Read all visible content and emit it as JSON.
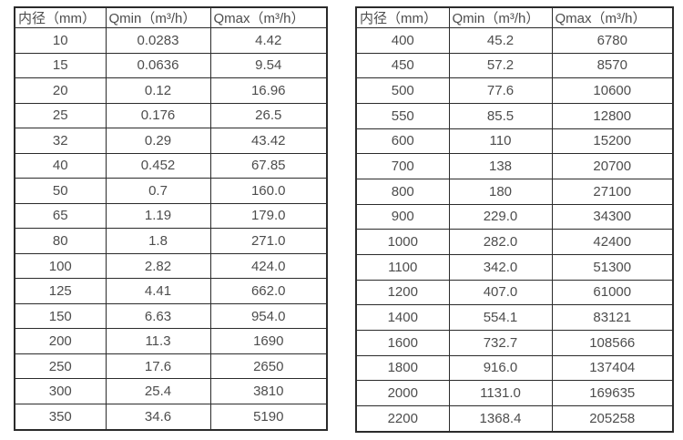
{
  "colors": {
    "background": "#ffffff",
    "border": "#2b2b2b",
    "text": "#4d4d4d"
  },
  "tables": [
    {
      "name": "small-diameter-flow-table",
      "headers": [
        "内径（mm）",
        "Qmin（m³/h）",
        "Qmax（m³/h）"
      ],
      "rows": [
        [
          "10",
          "0.0283",
          "4.42"
        ],
        [
          "15",
          "0.0636",
          "9.54"
        ],
        [
          "20",
          "0.12",
          "16.96"
        ],
        [
          "25",
          "0.176",
          "26.5"
        ],
        [
          "32",
          "0.29",
          "43.42"
        ],
        [
          "40",
          "0.452",
          "67.85"
        ],
        [
          "50",
          "0.7",
          "160.0"
        ],
        [
          "65",
          "1.19",
          "179.0"
        ],
        [
          "80",
          "1.8",
          "271.0"
        ],
        [
          "100",
          "2.82",
          "424.0"
        ],
        [
          "125",
          "4.41",
          "662.0"
        ],
        [
          "150",
          "6.63",
          "954.0"
        ],
        [
          "200",
          "11.3",
          "1690"
        ],
        [
          "250",
          "17.6",
          "2650"
        ],
        [
          "300",
          "25.4",
          "3810"
        ],
        [
          "350",
          "34.6",
          "5190"
        ]
      ]
    },
    {
      "name": "large-diameter-flow-table",
      "headers": [
        "内径（mm）",
        "Qmin（m³/h）",
        "Qmax（m³/h）"
      ],
      "rows": [
        [
          "400",
          "45.2",
          "6780"
        ],
        [
          "450",
          "57.2",
          "8570"
        ],
        [
          "500",
          "77.6",
          "10600"
        ],
        [
          "550",
          "85.5",
          "12800"
        ],
        [
          "600",
          "110",
          "15200"
        ],
        [
          "700",
          "138",
          "20700"
        ],
        [
          "800",
          "180",
          "27100"
        ],
        [
          "900",
          "229.0",
          "34300"
        ],
        [
          "1000",
          "282.0",
          "42400"
        ],
        [
          "1100",
          "342.0",
          "51300"
        ],
        [
          "1200",
          "407.0",
          "61000"
        ],
        [
          "1400",
          "554.1",
          "83121"
        ],
        [
          "1600",
          "732.7",
          "108566"
        ],
        [
          "1800",
          "916.0",
          "137404"
        ],
        [
          "2000",
          "1131.0",
          "169635"
        ],
        [
          "2200",
          "1368.4",
          "205258"
        ]
      ]
    }
  ]
}
